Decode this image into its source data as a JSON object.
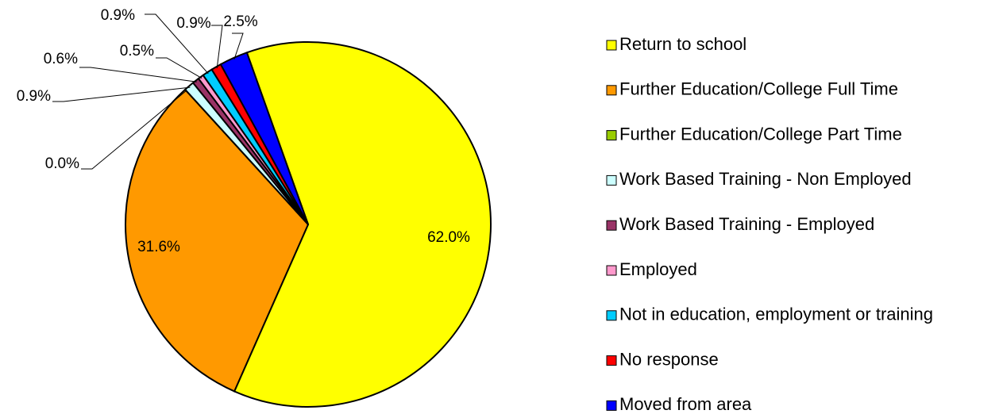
{
  "chart_data": {
    "type": "pie",
    "categories": [
      "Return to school",
      "Further Education/College Full Time",
      "Further Education/College Part Time",
      "Work Based Training - Non Employed",
      "Work Based Training - Employed",
      "Employed",
      "Not in education, employment or training",
      "No response",
      "Moved from area"
    ],
    "values": [
      62.0,
      31.6,
      0.0,
      0.9,
      0.6,
      0.5,
      0.9,
      0.9,
      2.5
    ],
    "value_labels": [
      "62.0%",
      "31.6%",
      "0.0%",
      "0.9%",
      "0.6%",
      "0.5%",
      "0.9%",
      "0.9%",
      "2.5%"
    ],
    "colors": [
      "#ffff00",
      "#ff9900",
      "#99cc00",
      "#ccffff",
      "#993366",
      "#ff99cc",
      "#00ccff",
      "#ff0000",
      "#0000ff"
    ],
    "legend": "right"
  }
}
